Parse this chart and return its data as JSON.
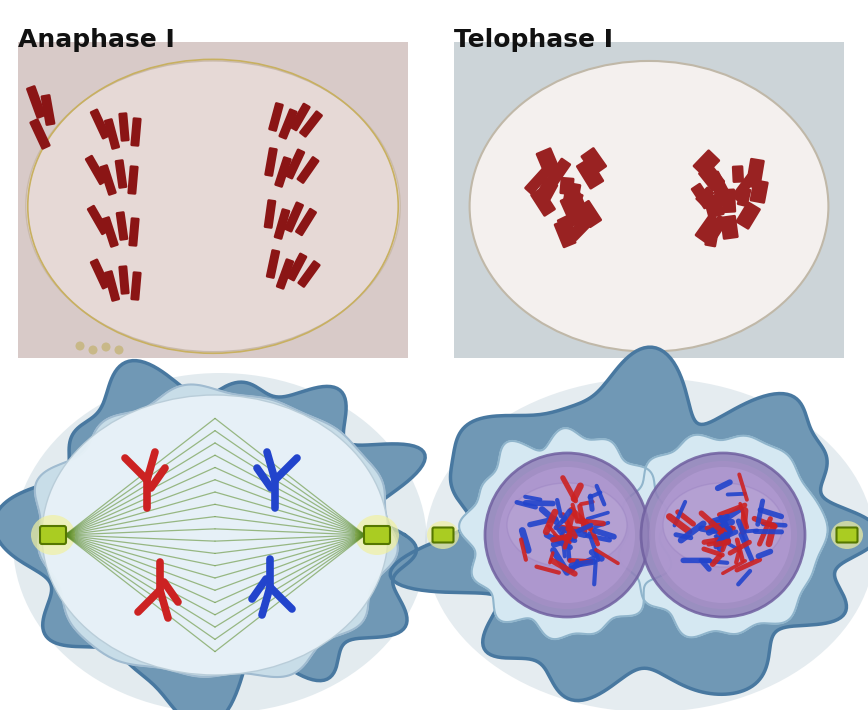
{
  "title_left": "Anaphase I",
  "title_right": "Telophase I",
  "title_fontsize": 18,
  "title_fontweight": "bold",
  "background_color": "#ffffff",
  "fig_width": 8.68,
  "fig_height": 7.1,
  "dpi": 100,
  "photo1_bg": "#d8cac8",
  "photo1_cell_color": "#e8dcd8",
  "photo2_bg": "#ccd4d8",
  "photo2_cell_color": "#f0ecea",
  "chrom_color_micro": "#8B1515",
  "chrom_red": "#cc2222",
  "chrom_blue": "#2244cc",
  "cell_outer_color": "#6a9fb8",
  "cell_outer_edge": "#4a7a95",
  "cell_inner_color": "#e0eff8",
  "cell_inner_edge": "#90b8cc",
  "spindle_color": "#558822",
  "centriole_color": "#aacc22",
  "centriole_edge": "#557700",
  "telophase_outer": "#7aaabf",
  "telophase_inner": "#daeaf5",
  "nucleus_color": "#9080b8",
  "nucleus_edge": "#7060a0",
  "nucleus_inner": "#b8a8d8"
}
